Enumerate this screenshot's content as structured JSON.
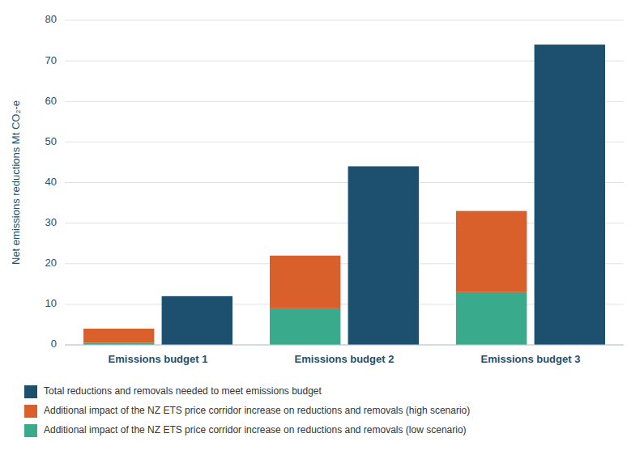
{
  "chart_data": {
    "type": "bar",
    "ylabel": "Net emissions reductions Mt CO₂-e",
    "categories": [
      "Emissions budget 1",
      "Emissions budget 2",
      "Emissions budget 3"
    ],
    "series": [
      {
        "name": "Total reductions and removals needed to meet emissions budget",
        "color": "#1d4f6e",
        "type": "bar",
        "values": [
          12,
          44,
          74
        ]
      },
      {
        "name": "Additional impact of the NZ ETS price corridor increase on reductions and removals (high scenario)",
        "color": "#d95f2b",
        "type": "stacked_bar",
        "values": [
          3.5,
          13,
          20
        ]
      },
      {
        "name": "Additional impact of the NZ ETS price corridor increase on reductions and removals (low scenario)",
        "color": "#3aaa8c",
        "type": "stacked_bar",
        "values": [
          0.5,
          9,
          13
        ]
      }
    ],
    "ylim": [
      0,
      80
    ],
    "yticks": [
      0,
      10,
      20,
      30,
      40,
      50,
      60,
      70,
      80
    ],
    "grid": true,
    "legend": "bottom"
  }
}
